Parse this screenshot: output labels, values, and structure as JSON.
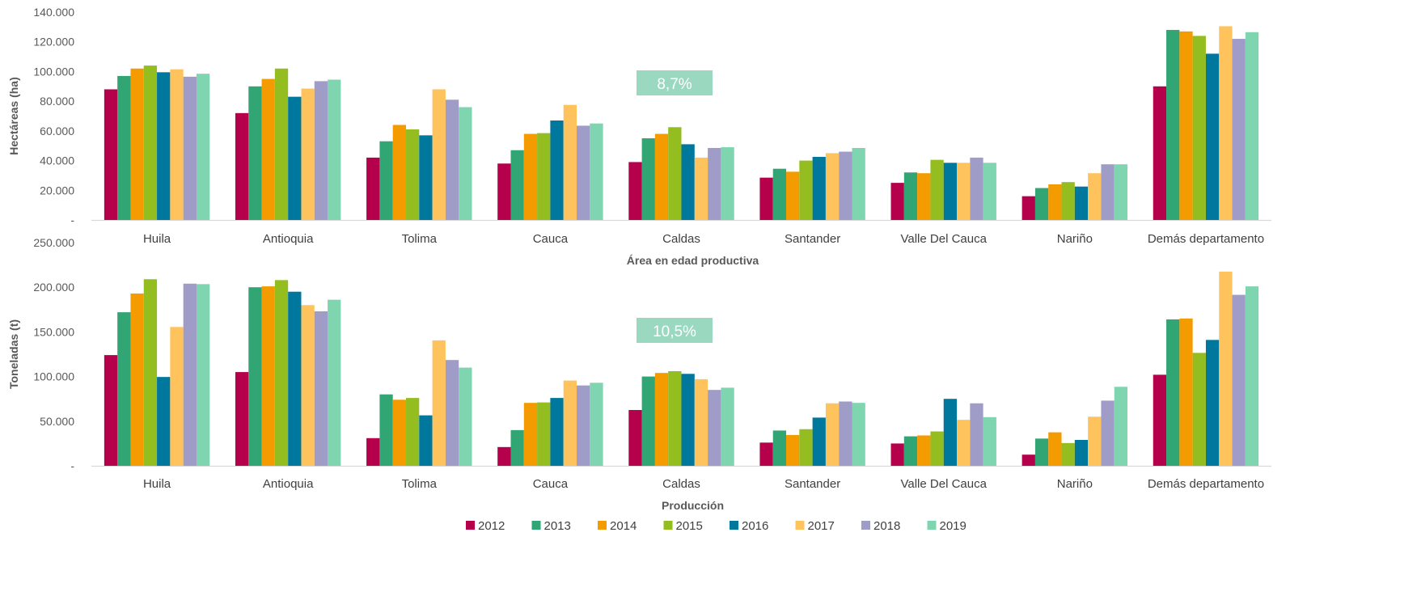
{
  "colors": {
    "2012": "#b5004c",
    "2013": "#32a574",
    "2014": "#f49b00",
    "2015": "#94bd1f",
    "2016": "#00789e",
    "2017": "#fec35c",
    "2018": "#a09cc8",
    "2019": "#7fd5b0",
    "annotation_bg": "#9ad8bf",
    "axis": "#d9d9d9"
  },
  "legend": [
    "2012",
    "2013",
    "2014",
    "2015",
    "2016",
    "2017",
    "2018",
    "2019"
  ],
  "chart_data": [
    {
      "type": "bar",
      "xlabel": "Área en edad productiva",
      "ylabel": "Hectáreas (ha)",
      "ylim": [
        0,
        140000
      ],
      "yticks": [
        "-",
        "20.000",
        "40.000",
        "60.000",
        "80.000",
        "100.000",
        "120.000",
        "140.000"
      ],
      "annotation": "8,7%",
      "categories": [
        "Huila",
        "Antioquia",
        "Tolima",
        "Cauca",
        "Caldas",
        "Santander",
        "Valle Del Cauca",
        "Nariño",
        "Demás departamento"
      ],
      "series": [
        {
          "name": "2012",
          "values": [
            88000,
            72000,
            42000,
            38000,
            39000,
            28500,
            25000,
            16000,
            90000
          ]
        },
        {
          "name": "2013",
          "values": [
            97000,
            90000,
            53000,
            47000,
            55000,
            34500,
            32000,
            21500,
            128000
          ]
        },
        {
          "name": "2014",
          "values": [
            102000,
            95000,
            64000,
            58000,
            58000,
            32500,
            31500,
            24000,
            127000
          ]
        },
        {
          "name": "2015",
          "values": [
            104000,
            102000,
            61000,
            58500,
            62500,
            40000,
            40500,
            25500,
            124000
          ]
        },
        {
          "name": "2016",
          "values": [
            99500,
            83000,
            57000,
            67000,
            51000,
            42500,
            38500,
            22500,
            112000
          ]
        },
        {
          "name": "2017",
          "values": [
            101500,
            88500,
            88000,
            77500,
            42000,
            45000,
            38500,
            31500,
            130500
          ]
        },
        {
          "name": "2018",
          "values": [
            96500,
            93500,
            81000,
            63500,
            48500,
            46000,
            42000,
            37500,
            122000
          ]
        },
        {
          "name": "2019",
          "values": [
            98500,
            94500,
            76000,
            65000,
            49000,
            48500,
            38500,
            37500,
            126500
          ]
        }
      ]
    },
    {
      "type": "bar",
      "xlabel": "Producción",
      "ylabel": "Toneladas (t)",
      "ylim": [
        0,
        250000
      ],
      "yticks": [
        "-",
        "50.000",
        "100.000",
        "150.000",
        "200.000",
        "250.000"
      ],
      "annotation": "10,5%",
      "categories": [
        "Huila",
        "Antioquia",
        "Tolima",
        "Cauca",
        "Caldas",
        "Santander",
        "Valle Del Cauca",
        "Nariño",
        "Demás departamento"
      ],
      "series": [
        {
          "name": "2012",
          "values": [
            124000,
            105000,
            31000,
            21000,
            62500,
            26000,
            25000,
            12500,
            102000
          ]
        },
        {
          "name": "2013",
          "values": [
            172000,
            200000,
            80000,
            40000,
            100000,
            39500,
            33000,
            30500,
            164000
          ]
        },
        {
          "name": "2014",
          "values": [
            193000,
            201000,
            74000,
            70500,
            104000,
            34500,
            34000,
            37500,
            165000
          ]
        },
        {
          "name": "2015",
          "values": [
            209000,
            208000,
            76000,
            71000,
            106000,
            41000,
            38500,
            25500,
            126500
          ]
        },
        {
          "name": "2016",
          "values": [
            99500,
            195000,
            56500,
            76000,
            103000,
            54000,
            75000,
            29000,
            141000
          ]
        },
        {
          "name": "2017",
          "values": [
            155500,
            180000,
            140500,
            95500,
            97000,
            70000,
            51500,
            55000,
            217500
          ]
        },
        {
          "name": "2018",
          "values": [
            204000,
            173000,
            118500,
            90000,
            85000,
            72000,
            70000,
            73000,
            191500
          ]
        },
        {
          "name": "2019",
          "values": [
            203500,
            186000,
            110000,
            93000,
            87500,
            70500,
            54500,
            88500,
            201000
          ]
        }
      ]
    }
  ]
}
